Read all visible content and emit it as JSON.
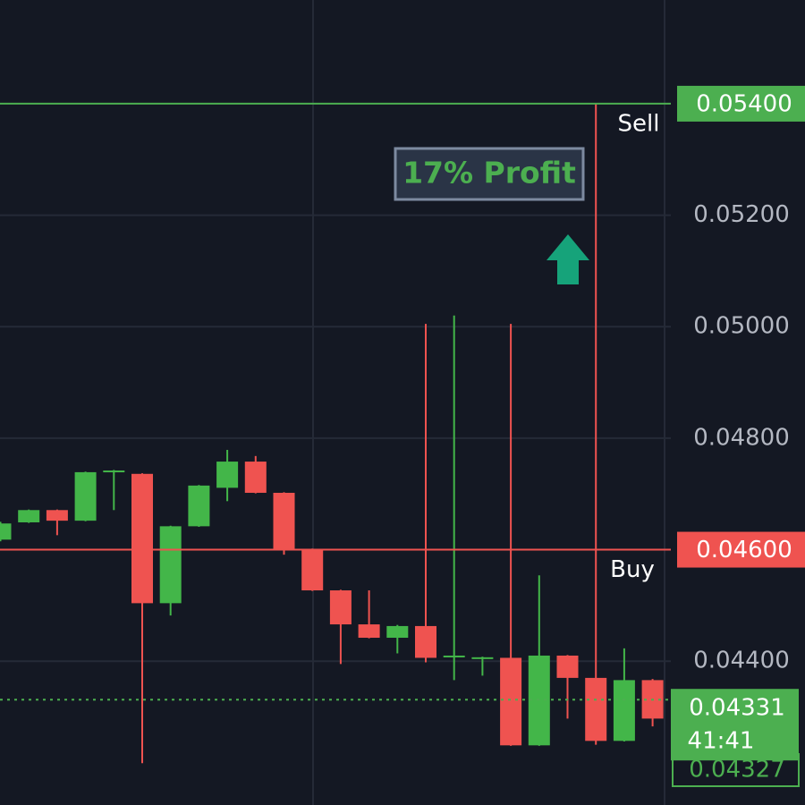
{
  "chart_data": {
    "type": "candlestick",
    "open": [
      0.04618,
      0.04649,
      0.04671,
      0.04652,
      0.04742,
      0.04736,
      0.04504,
      0.04642,
      0.04711,
      0.04758,
      0.04702,
      0.04601,
      0.04527,
      0.04466,
      0.04442,
      0.04463,
      0.0441,
      0.04406,
      0.04406,
      0.04249,
      0.0441,
      0.0437,
      0.04257,
      0.04366
    ],
    "high": [
      0.0465,
      0.04672,
      0.04672,
      0.0474,
      0.04743,
      0.04737,
      0.04643,
      0.04716,
      0.04779,
      0.04768,
      0.04703,
      0.04602,
      0.04528,
      0.04527,
      0.04465,
      0.05005,
      0.0502,
      0.04408,
      0.05005,
      0.04554,
      0.04411,
      0.054,
      0.04423,
      0.04368
    ],
    "low": [
      0.04615,
      0.04648,
      0.04626,
      0.04651,
      0.04671,
      0.04217,
      0.04482,
      0.04641,
      0.04687,
      0.04701,
      0.04591,
      0.04526,
      0.04395,
      0.04441,
      0.04414,
      0.04398,
      0.04366,
      0.04374,
      0.04248,
      0.04248,
      0.04297,
      0.0425,
      0.04256,
      0.04283
    ],
    "close": [
      0.04647,
      0.04671,
      0.04652,
      0.04739,
      0.04742,
      0.04504,
      0.04642,
      0.04715,
      0.04758,
      0.04702,
      0.04601,
      0.04527,
      0.04466,
      0.04442,
      0.04463,
      0.04406,
      0.0441,
      0.04407,
      0.04249,
      0.0441,
      0.0437,
      0.04257,
      0.04366,
      0.04297
    ],
    "up_color": "#43b649",
    "down_color": "#ef5350",
    "ylim": [
      0.04142,
      0.05586
    ],
    "yticks": [
      {
        "value": 0.044,
        "label": "0.04400"
      },
      {
        "value": 0.048,
        "label": "0.04800"
      },
      {
        "value": 0.05,
        "label": "0.05000"
      },
      {
        "value": 0.052,
        "label": "0.05200"
      }
    ],
    "grid": true,
    "price_lines": [
      {
        "value": 0.054,
        "label": "0.05400",
        "text": "Sell",
        "color": "#4caf50"
      },
      {
        "value": 0.046,
        "label": "0.04600",
        "text": "Buy",
        "color": "#ef5350"
      }
    ],
    "current_price": {
      "value": 0.04331,
      "label": "0.04331",
      "countdown": "41:41",
      "color": "#4caf50"
    },
    "last_price": {
      "value": 0.04327,
      "label": "0.04327"
    },
    "annotation": "17% Profit"
  }
}
